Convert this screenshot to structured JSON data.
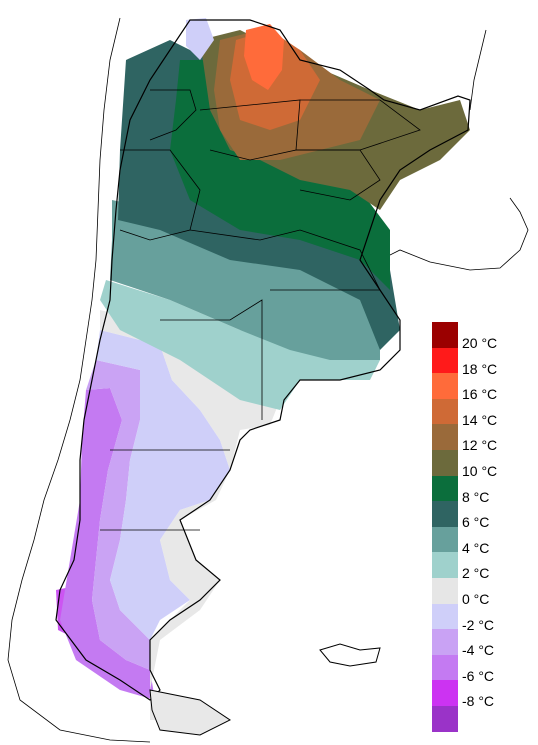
{
  "legend": {
    "unit": "°C",
    "swatches": [
      {
        "color": "#9b0000"
      },
      {
        "color": "#ff1a1a",
        "value": "20"
      },
      {
        "color": "#ff6b3a",
        "value": "18"
      },
      {
        "color": "#cf6a36",
        "value": "16"
      },
      {
        "color": "#9a6a3a",
        "value": "14"
      },
      {
        "color": "#6c6a3c",
        "value": "12"
      },
      {
        "color": "#0b6e3c",
        "value": "10"
      },
      {
        "color": "#2f6462",
        "value": "8"
      },
      {
        "color": "#67a09c",
        "value": "6"
      },
      {
        "color": "#9fd1cc",
        "value": "4"
      },
      {
        "color": "#e6e6e6",
        "value": "2"
      },
      {
        "color": "#cfcff9",
        "value": "0"
      },
      {
        "color": "#c9a2f4",
        "value": "-2"
      },
      {
        "color": "#c47af2",
        "value": "-4"
      },
      {
        "color": "#cc33f2",
        "value": "-6"
      },
      {
        "color": "#9a33c8",
        "value": "-8"
      }
    ],
    "labels": [
      "20 °C",
      "18 °C",
      "16 °C",
      "14 °C",
      "12 °C",
      "10 °C",
      "8 °C",
      "6 °C",
      "4 °C",
      "2 °C",
      "0 °C",
      "-2 °C",
      "-4 °C",
      "-6 °C",
      "-8 °C"
    ]
  }
}
